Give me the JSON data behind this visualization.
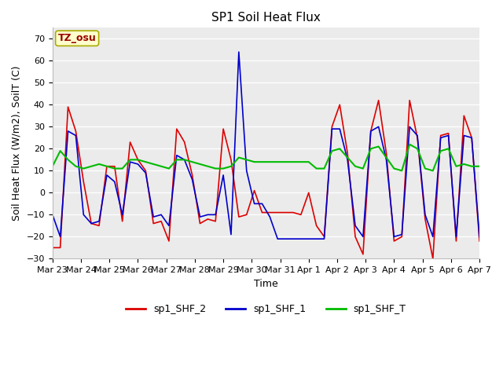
{
  "title": "SP1 Soil Heat Flux",
  "xlabel": "Time",
  "ylabel": "Soil Heat Flux (W/m2), SoilT (C)",
  "ylim": [
    -30,
    75
  ],
  "yticks": [
    -30,
    -20,
    -10,
    0,
    10,
    20,
    30,
    40,
    50,
    60,
    70
  ],
  "tz_label": "TZ_osu",
  "legend": [
    "sp1_SHF_2",
    "sp1_SHF_1",
    "sp1_SHF_T"
  ],
  "line_colors": [
    "#dd0000",
    "#0000cc",
    "#00bb00"
  ],
  "background_color": "#ebebeb",
  "fig_background": "#ffffff",
  "x_tick_labels": [
    "Mar 23",
    "Mar 24",
    "Mar 25",
    "Mar 26",
    "Mar 27",
    "Mar 28",
    "Mar 29",
    "Mar 30",
    "Mar 31",
    "Apr 1",
    "Apr 2",
    "Apr 3",
    "Apr 4",
    "Apr 5",
    "Apr 6",
    "Apr 7"
  ],
  "x_tick_positions": [
    0,
    1,
    2,
    3,
    4,
    5,
    6,
    7,
    8,
    9,
    10,
    11,
    12,
    13,
    14,
    15
  ],
  "sp1_SHF_2": [
    -25,
    -25,
    39,
    28,
    5,
    -14,
    -15,
    12,
    12,
    -13,
    23,
    15,
    10,
    -14,
    -13,
    -22,
    29,
    23,
    8,
    -14,
    -12,
    -13,
    29,
    15,
    -11,
    -10,
    1,
    -9,
    -9,
    -9,
    -9,
    -9,
    -10,
    0,
    -15,
    -20,
    30,
    40,
    18,
    -20,
    -28,
    28,
    42,
    18,
    -22,
    -20,
    42,
    25,
    -12,
    -30,
    26,
    27,
    -22,
    35,
    25,
    -22
  ],
  "sp1_SHF_1": [
    -10,
    -20,
    28,
    26,
    -10,
    -14,
    -13,
    8,
    5,
    -10,
    14,
    13,
    9,
    -11,
    -10,
    -15,
    17,
    15,
    6,
    -11,
    -10,
    -10,
    8,
    -19,
    64,
    10,
    -5,
    -5,
    -11,
    -21,
    -21,
    -21,
    -21,
    -21,
    -21,
    -21,
    29,
    29,
    15,
    -15,
    -20,
    28,
    30,
    15,
    -20,
    -19,
    30,
    26,
    -10,
    -20,
    25,
    26,
    -20,
    26,
    25,
    -20
  ],
  "sp1_SHF_T": [
    12,
    19,
    15,
    12,
    11,
    12,
    13,
    12,
    11,
    11,
    15,
    15,
    14,
    13,
    12,
    11,
    15,
    15,
    14,
    13,
    12,
    11,
    11,
    12,
    16,
    15,
    14,
    14,
    14,
    14,
    14,
    14,
    14,
    14,
    11,
    11,
    19,
    20,
    16,
    12,
    11,
    20,
    21,
    16,
    11,
    10,
    22,
    20,
    11,
    10,
    19,
    20,
    12,
    13,
    12,
    12
  ],
  "title_fontsize": 11,
  "label_fontsize": 9,
  "tick_fontsize": 8,
  "legend_fontsize": 9,
  "linewidth": 1.2
}
